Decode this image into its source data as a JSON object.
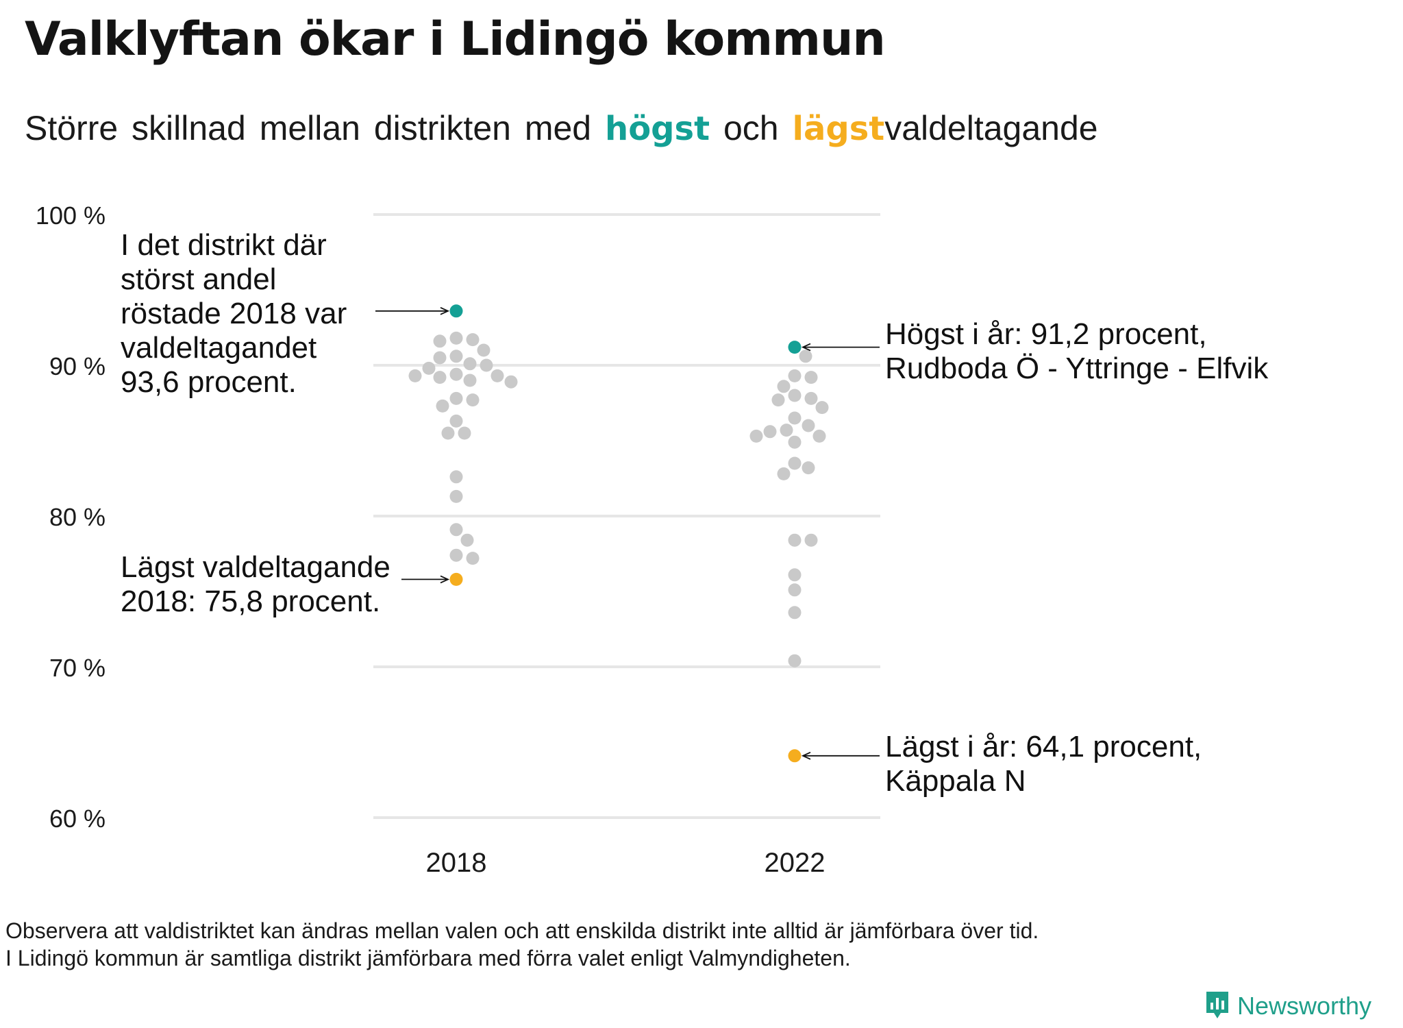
{
  "title": "Valklyftan ökar i Lidingö kommun",
  "subtitle": {
    "part1": "Större skillnad mellan distrikten med",
    "high_word": "högst",
    "middle": "och",
    "low_word": "lägst",
    "part2": "valdeltagande"
  },
  "colors": {
    "highest": "#14a095",
    "lowest": "#f5ad1e",
    "other": "#c9c9c9",
    "grid": "#e6e6e6"
  },
  "chart_data": {
    "type": "scatter",
    "categories": [
      "2018",
      "2022"
    ],
    "ylim": [
      60,
      100
    ],
    "y_ticks": [
      100,
      90,
      80,
      70,
      60
    ],
    "y_tick_suffix": " %",
    "grid": true,
    "series": [
      {
        "name": "2018",
        "highest": 93.6,
        "lowest": 75.8,
        "values": [
          93.6,
          91.8,
          91.6,
          91.7,
          91.0,
          90.6,
          90.5,
          90.0,
          90.1,
          89.8,
          89.4,
          89.3,
          89.3,
          89.2,
          89.0,
          88.9,
          87.8,
          87.7,
          87.3,
          86.3,
          85.5,
          85.5,
          82.6,
          81.3,
          79.1,
          78.4,
          77.4,
          77.2,
          75.8
        ]
      },
      {
        "name": "2022",
        "highest": 91.2,
        "lowest": 64.1,
        "values": [
          91.2,
          90.6,
          89.3,
          89.2,
          88.6,
          88.0,
          87.8,
          87.7,
          87.2,
          86.5,
          86.0,
          85.7,
          85.6,
          85.3,
          85.3,
          84.9,
          83.5,
          83.2,
          82.8,
          78.4,
          78.4,
          76.1,
          75.1,
          73.6,
          70.4,
          64.1
        ]
      }
    ],
    "annotations": {
      "high_2018": [
        "I det distrikt där",
        "störst andel",
        "röstade 2018 var",
        "valdeltagandet",
        "93,6 procent."
      ],
      "low_2018": [
        "Lägst valdeltagande",
        "2018: 75,8 procent."
      ],
      "high_2022": [
        "Högst i år: 91,2 procent,",
        "Rudboda Ö - Yttringe - Elfvik"
      ],
      "low_2022": [
        "Lägst i år: 64,1 procent,",
        "Käppala N"
      ]
    }
  },
  "footnote": [
    "Observera att valdistriktet kan ändras mellan valen och att enskilda distrikt inte alltid är jämförbara över tid.",
    "I Lidingö kommun är samtliga distrikt jämförbara med förra valet enligt Valmyndigheten."
  ],
  "brand": {
    "name": "Newsworthy",
    "icon": "newsworthy-logo-icon"
  }
}
